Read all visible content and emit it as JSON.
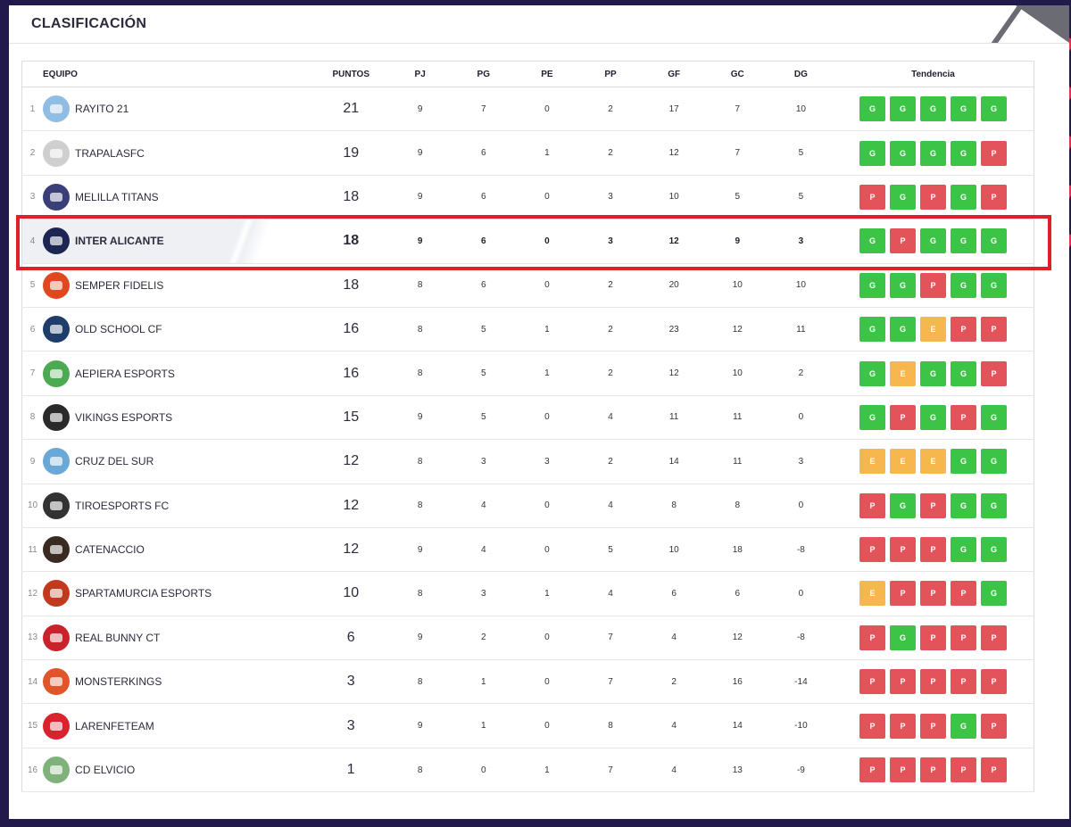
{
  "header": {
    "title": "CLASIFICACIÓN"
  },
  "columns": {
    "team": "EQUIPO",
    "points": "PUNTOS",
    "pj": "PJ",
    "pg": "PG",
    "pe": "PE",
    "pp": "PP",
    "gf": "GF",
    "gc": "GC",
    "dg": "DG",
    "trend": "Tendencia"
  },
  "colors": {
    "win": "#3cc447",
    "loss": "#e2535a",
    "draw": "#f5b74e",
    "highlight": "#e02028"
  },
  "rows": [
    {
      "pos": "1",
      "team": "RAYITO 21",
      "pts": "21",
      "pj": "9",
      "pg": "7",
      "pe": "0",
      "pp": "2",
      "gf": "17",
      "gc": "7",
      "dg": "10",
      "trend": [
        "G",
        "G",
        "G",
        "G",
        "G"
      ],
      "crest": "#8fbde3"
    },
    {
      "pos": "2",
      "team": "TRAPALASFC",
      "pts": "19",
      "pj": "9",
      "pg": "6",
      "pe": "1",
      "pp": "2",
      "gf": "12",
      "gc": "7",
      "dg": "5",
      "trend": [
        "G",
        "G",
        "G",
        "G",
        "P"
      ],
      "crest": "#cfcfcf"
    },
    {
      "pos": "3",
      "team": "MELILLA TITANS",
      "pts": "18",
      "pj": "9",
      "pg": "6",
      "pe": "0",
      "pp": "3",
      "gf": "10",
      "gc": "5",
      "dg": "5",
      "trend": [
        "P",
        "G",
        "P",
        "G",
        "P"
      ],
      "crest": "#3a3f7a"
    },
    {
      "pos": "4",
      "team": "INTER ALICANTE",
      "pts": "18",
      "pj": "9",
      "pg": "6",
      "pe": "0",
      "pp": "3",
      "gf": "12",
      "gc": "9",
      "dg": "3",
      "trend": [
        "G",
        "P",
        "G",
        "G",
        "G"
      ],
      "crest": "#1d2552"
    },
    {
      "pos": "5",
      "team": "SEMPER FIDELIS",
      "pts": "18",
      "pj": "8",
      "pg": "6",
      "pe": "0",
      "pp": "2",
      "gf": "20",
      "gc": "10",
      "dg": "10",
      "trend": [
        "G",
        "G",
        "P",
        "G",
        "G"
      ],
      "crest": "#e0481f"
    },
    {
      "pos": "6",
      "team": "OLD SCHOOL CF",
      "pts": "16",
      "pj": "8",
      "pg": "5",
      "pe": "1",
      "pp": "2",
      "gf": "23",
      "gc": "12",
      "dg": "11",
      "trend": [
        "G",
        "G",
        "E",
        "P",
        "P"
      ],
      "crest": "#1e3d6b"
    },
    {
      "pos": "7",
      "team": "AEPIERA ESPORTS",
      "pts": "16",
      "pj": "8",
      "pg": "5",
      "pe": "1",
      "pp": "2",
      "gf": "12",
      "gc": "10",
      "dg": "2",
      "trend": [
        "G",
        "E",
        "G",
        "G",
        "P"
      ],
      "crest": "#4caa52"
    },
    {
      "pos": "8",
      "team": "VIKINGS ESPORTS",
      "pts": "15",
      "pj": "9",
      "pg": "5",
      "pe": "0",
      "pp": "4",
      "gf": "11",
      "gc": "11",
      "dg": "0",
      "trend": [
        "G",
        "P",
        "G",
        "P",
        "G"
      ],
      "crest": "#2a2a2a"
    },
    {
      "pos": "9",
      "team": "CRUZ DEL SUR",
      "pts": "12",
      "pj": "8",
      "pg": "3",
      "pe": "3",
      "pp": "2",
      "gf": "14",
      "gc": "11",
      "dg": "3",
      "trend": [
        "E",
        "E",
        "E",
        "G",
        "G"
      ],
      "crest": "#6aa8d8"
    },
    {
      "pos": "10",
      "team": "TIROESPORTS FC",
      "pts": "12",
      "pj": "8",
      "pg": "4",
      "pe": "0",
      "pp": "4",
      "gf": "8",
      "gc": "8",
      "dg": "0",
      "trend": [
        "P",
        "G",
        "P",
        "G",
        "G"
      ],
      "crest": "#333333"
    },
    {
      "pos": "11",
      "team": "CATENACCIO",
      "pts": "12",
      "pj": "9",
      "pg": "4",
      "pe": "0",
      "pp": "5",
      "gf": "10",
      "gc": "18",
      "dg": "-8",
      "trend": [
        "P",
        "P",
        "P",
        "G",
        "G"
      ],
      "crest": "#3b2a22"
    },
    {
      "pos": "12",
      "team": "SPARTAMURCIA ESPORTS",
      "pts": "10",
      "pj": "8",
      "pg": "3",
      "pe": "1",
      "pp": "4",
      "gf": "6",
      "gc": "6",
      "dg": "0",
      "trend": [
        "E",
        "P",
        "P",
        "P",
        "G"
      ],
      "crest": "#c23a1e"
    },
    {
      "pos": "13",
      "team": "REAL BUNNY CT",
      "pts": "6",
      "pj": "9",
      "pg": "2",
      "pe": "0",
      "pp": "7",
      "gf": "4",
      "gc": "12",
      "dg": "-8",
      "trend": [
        "P",
        "G",
        "P",
        "P",
        "P"
      ],
      "crest": "#c8232b"
    },
    {
      "pos": "14",
      "team": "MONSTERKINGS",
      "pts": "3",
      "pj": "8",
      "pg": "1",
      "pe": "0",
      "pp": "7",
      "gf": "2",
      "gc": "16",
      "dg": "-14",
      "trend": [
        "P",
        "P",
        "P",
        "P",
        "P"
      ],
      "crest": "#e0552a"
    },
    {
      "pos": "15",
      "team": "LARENFETEAM",
      "pts": "3",
      "pj": "9",
      "pg": "1",
      "pe": "0",
      "pp": "8",
      "gf": "4",
      "gc": "14",
      "dg": "-10",
      "trend": [
        "P",
        "P",
        "P",
        "G",
        "P"
      ],
      "crest": "#d8232e"
    },
    {
      "pos": "16",
      "team": "CD ELVICIO",
      "pts": "1",
      "pj": "8",
      "pg": "0",
      "pe": "1",
      "pp": "7",
      "gf": "4",
      "gc": "13",
      "dg": "-9",
      "trend": [
        "P",
        "P",
        "P",
        "P",
        "P"
      ],
      "crest": "#7fb27a"
    }
  ],
  "highlighted_row": "4"
}
